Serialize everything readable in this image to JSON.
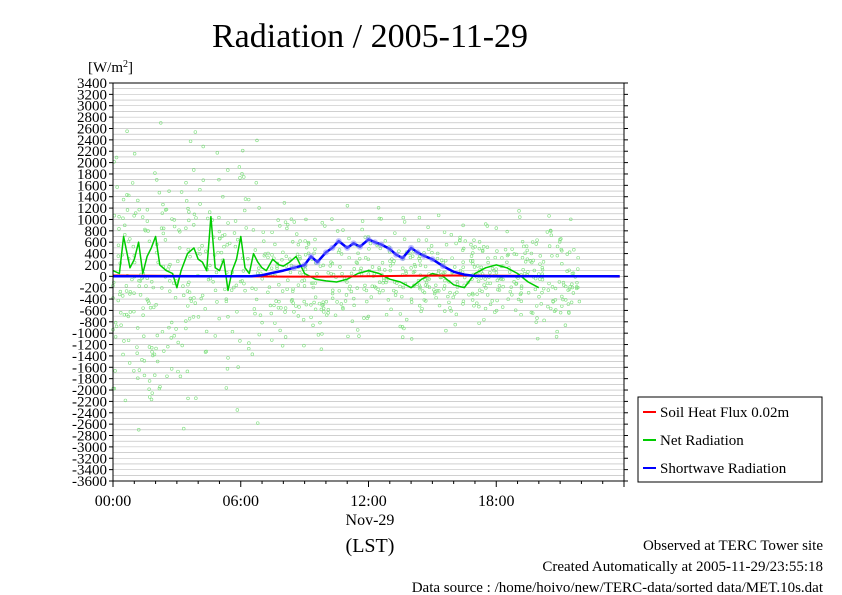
{
  "chart_data": {
    "type": "line",
    "title": "Radiation / 2005-11-29",
    "ylabel": "[W/m²]",
    "ylabel_base": "[W/m",
    "ylabel_sup": "2",
    "ylabel_close": "]",
    "ylim": [
      -3600,
      3400
    ],
    "y_ticks": [
      3400,
      3200,
      3000,
      2800,
      2600,
      2400,
      2200,
      2000,
      1800,
      1600,
      1400,
      1200,
      1000,
      800,
      600,
      400,
      200,
      0,
      -200,
      -400,
      -600,
      -800,
      -1000,
      -1200,
      -1400,
      -1600,
      -1800,
      -2000,
      -2200,
      -2400,
      -2600,
      -2800,
      -3000,
      -3200,
      -3400,
      -3600
    ],
    "xlim": [
      0,
      24
    ],
    "x_ticks": [
      {
        "value": 0,
        "label": "00:00"
      },
      {
        "value": 6,
        "label": "06:00"
      },
      {
        "value": 12,
        "label": "12:00"
      },
      {
        "value": 18,
        "label": "18:00"
      }
    ],
    "x_date_label": "Nov-29",
    "xlabel": "(LST)",
    "grid": true,
    "legend_placement": "right-bottom",
    "series": [
      {
        "name": "Soil Heat Flux 0.02m",
        "color": "#ff0000",
        "x": [
          0,
          2,
          4,
          6,
          8,
          10,
          12,
          14,
          16,
          18,
          20,
          22,
          23.8
        ],
        "y": [
          15,
          10,
          5,
          0,
          -5,
          -5,
          0,
          10,
          15,
          10,
          5,
          0,
          -5
        ]
      },
      {
        "name": "Net Radiation",
        "color": "#00cc00",
        "x": [
          0,
          0.3,
          0.5,
          0.8,
          1.0,
          1.2,
          1.4,
          1.6,
          1.8,
          2.0,
          2.2,
          2.5,
          2.8,
          3.0,
          3.2,
          3.5,
          3.8,
          4.0,
          4.2,
          4.4,
          4.6,
          4.8,
          5.0,
          5.2,
          5.4,
          5.6,
          5.8,
          6.0,
          6.2,
          6.4,
          6.6,
          6.8,
          7.0,
          7.2,
          7.5,
          7.8,
          8.0,
          8.3,
          8.6,
          9.0,
          9.5,
          10.0,
          10.5,
          11.0,
          11.5,
          12.0,
          12.5,
          13.0,
          13.5,
          14.0,
          14.5,
          15.0,
          15.5,
          16.0,
          16.5,
          17.0,
          17.5,
          18.0,
          18.5,
          19.0,
          19.5,
          20.0
        ],
        "y": [
          100,
          50,
          700,
          150,
          300,
          600,
          50,
          350,
          500,
          700,
          200,
          100,
          50,
          -200,
          100,
          400,
          500,
          300,
          250,
          100,
          1050,
          150,
          100,
          300,
          -250,
          100,
          300,
          700,
          150,
          50,
          400,
          250,
          150,
          100,
          300,
          200,
          180,
          250,
          350,
          50,
          -50,
          -80,
          -100,
          -50,
          50,
          100,
          50,
          -50,
          -100,
          -200,
          -50,
          50,
          0,
          -150,
          -200,
          50,
          150,
          200,
          150,
          50,
          -100,
          -200
        ]
      },
      {
        "name": "Shortwave Radiation",
        "color": "#0000ff",
        "x": [
          0,
          6.5,
          7.0,
          7.5,
          8.0,
          8.5,
          9.0,
          9.3,
          9.6,
          10.0,
          10.3,
          10.6,
          11.0,
          11.3,
          11.6,
          12.0,
          12.3,
          12.6,
          13.0,
          13.3,
          13.6,
          14.0,
          14.3,
          14.6,
          15.0,
          15.5,
          16.0,
          16.5,
          17.0,
          18.0,
          20.0,
          22.0,
          23.8
        ],
        "y": [
          0,
          0,
          20,
          60,
          100,
          150,
          200,
          350,
          250,
          420,
          500,
          620,
          500,
          580,
          520,
          650,
          600,
          560,
          480,
          380,
          320,
          500,
          420,
          360,
          300,
          180,
          80,
          30,
          5,
          0,
          0,
          0,
          0
        ]
      }
    ]
  },
  "footer": {
    "line1": "Observed at TERC Tower site",
    "line2": "Created Automatically at 2005-11-29/23:55:18",
    "line3": "Data source : /home/hoivo/new/TERC-data/sorted  data/MET.10s.dat"
  }
}
